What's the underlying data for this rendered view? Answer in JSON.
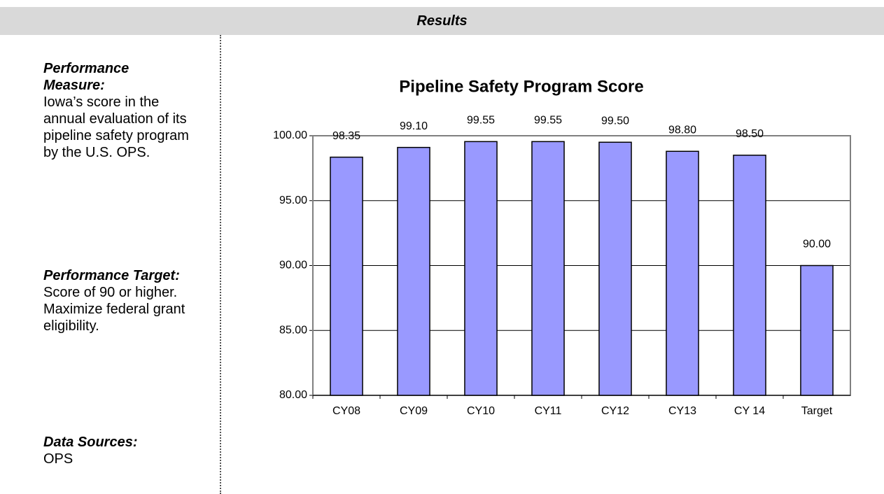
{
  "header": {
    "title": "Results"
  },
  "sections": [
    {
      "heading": "Performance Measure:",
      "text": "Iowa’s score in the annual evaluation of its pipeline safety program by the U.S. OPS."
    },
    {
      "heading": "Performance Target:",
      "text": "Score of 90 or higher.  Maximize federal grant eligibility."
    },
    {
      "heading": "Data Sources:",
      "text": "OPS"
    }
  ],
  "chart_data": {
    "type": "bar",
    "title": "Pipeline Safety Program Score",
    "categories": [
      "CY08",
      "CY09",
      "CY10",
      "CY11",
      "CY12",
      "CY13",
      "CY 14",
      "Target"
    ],
    "values": [
      98.35,
      99.1,
      99.55,
      99.55,
      99.5,
      98.8,
      98.5,
      90
    ],
    "value_labels": [
      "98.35",
      "99.10",
      "99.55",
      "99.55",
      "99.50",
      "98.80",
      "98.50",
      "90.00"
    ],
    "color": "#9999ff",
    "ylim": [
      80,
      100
    ],
    "yticks": [
      {
        "value": 80,
        "label": "80.00"
      },
      {
        "value": 85,
        "label": "85.00"
      },
      {
        "value": 90,
        "label": "90.00"
      },
      {
        "value": 95,
        "label": "95.00"
      },
      {
        "value": 100,
        "label": "100.00"
      }
    ],
    "grid": true
  }
}
